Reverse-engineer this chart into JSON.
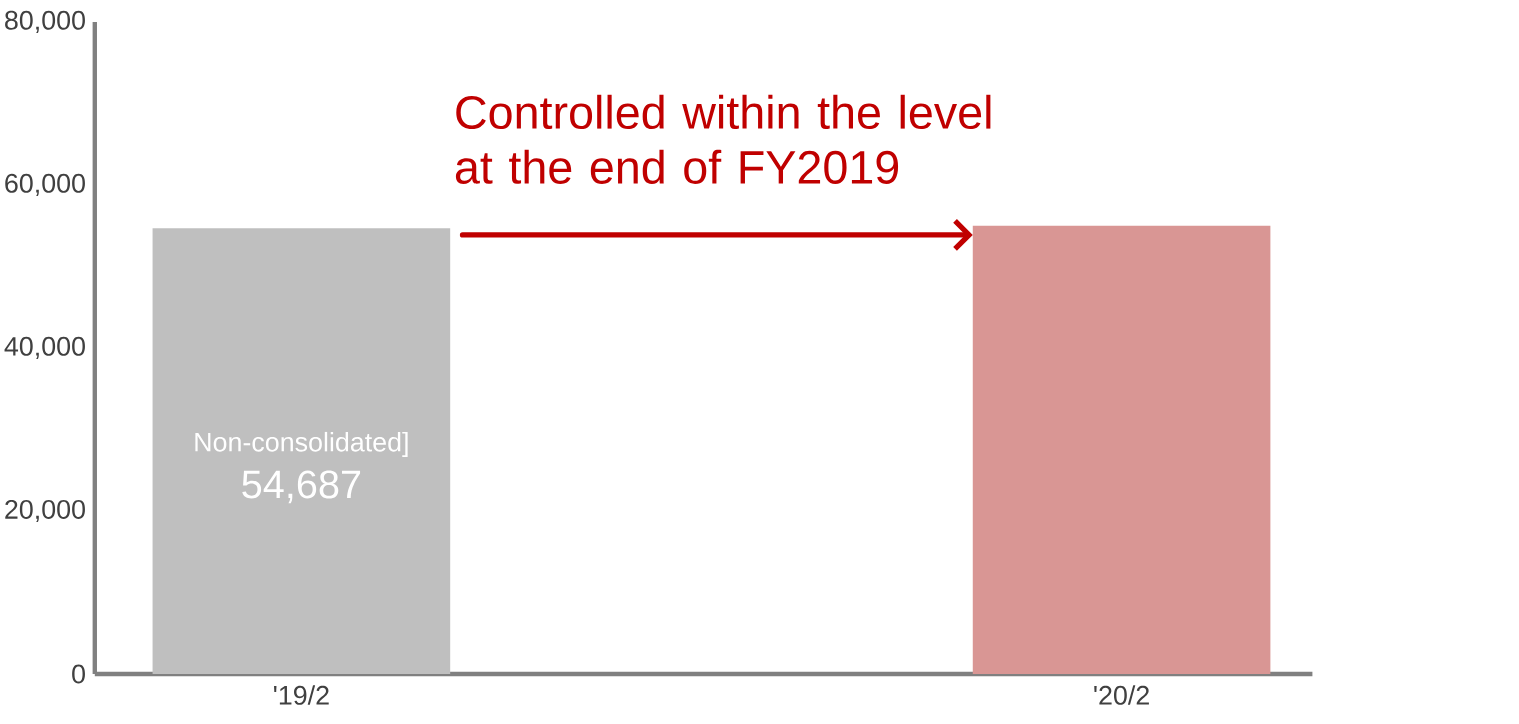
{
  "chart_data": {
    "type": "bar",
    "categories": [
      "'19/2",
      "'20/2"
    ],
    "values": [
      54687,
      55000
    ],
    "colors": [
      "#bfbfbf",
      "#d99694"
    ],
    "value_labels": [
      "54,687",
      null
    ],
    "annotations": [
      "Non-consolidated]",
      "Controlled within the level at the end of FY2019"
    ],
    "ylim": [
      0,
      80000
    ],
    "yticks": [
      {
        "value": 0,
        "label": "0"
      },
      {
        "value": 20000,
        "label": "20,000"
      },
      {
        "value": 40000,
        "label": "40,000"
      },
      {
        "value": 60000,
        "label": "60,000"
      },
      {
        "value": 80000,
        "label": "80,000"
      }
    ]
  }
}
